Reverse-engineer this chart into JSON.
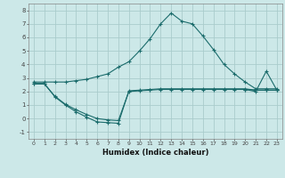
{
  "background_color": "#cce8e8",
  "grid_color": "#aacccc",
  "line_color": "#1a6b6b",
  "xlabel": "Humidex (Indice chaleur)",
  "ylim": [
    -1.5,
    8.5
  ],
  "xlim": [
    -0.5,
    23.5
  ],
  "yticks": [
    -1,
    0,
    1,
    2,
    3,
    4,
    5,
    6,
    7,
    8
  ],
  "xticks": [
    0,
    1,
    2,
    3,
    4,
    5,
    6,
    7,
    8,
    9,
    10,
    11,
    12,
    13,
    14,
    15,
    16,
    17,
    18,
    19,
    20,
    21,
    22,
    23
  ],
  "series1_x": [
    0,
    1,
    2,
    3,
    4,
    5,
    6,
    7,
    8,
    9,
    10,
    11,
    12,
    13,
    14,
    15,
    16,
    17,
    18,
    19,
    20,
    21,
    22,
    23
  ],
  "series1_y": [
    2.7,
    2.7,
    2.7,
    2.7,
    2.8,
    2.9,
    3.1,
    3.3,
    3.8,
    4.2,
    5.0,
    5.9,
    7.0,
    7.8,
    7.2,
    7.0,
    6.1,
    5.1,
    4.0,
    3.3,
    2.7,
    2.2,
    2.2,
    2.2
  ],
  "series2_x": [
    0,
    1,
    2,
    3,
    4,
    5,
    6,
    7,
    8,
    9,
    10,
    11,
    12,
    13,
    14,
    15,
    16,
    17,
    18,
    19,
    20,
    21,
    22,
    23
  ],
  "series2_y": [
    2.6,
    2.6,
    1.6,
    1.0,
    0.5,
    0.1,
    -0.25,
    -0.3,
    -0.35,
    2.05,
    2.1,
    2.15,
    2.2,
    2.2,
    2.2,
    2.2,
    2.2,
    2.2,
    2.2,
    2.2,
    2.2,
    2.1,
    2.1,
    2.1
  ],
  "series3_x": [
    0,
    1,
    2,
    3,
    4,
    5,
    6,
    7,
    8,
    9,
    10,
    11,
    12,
    13,
    14,
    15,
    16,
    17,
    18,
    19,
    20,
    21,
    22,
    23
  ],
  "series3_y": [
    2.55,
    2.55,
    1.65,
    1.05,
    0.65,
    0.3,
    0.0,
    -0.1,
    -0.15,
    2.0,
    2.05,
    2.1,
    2.15,
    2.15,
    2.15,
    2.15,
    2.15,
    2.15,
    2.15,
    2.15,
    2.15,
    2.1,
    2.1,
    2.1
  ],
  "series4_x": [
    20,
    21,
    22,
    23
  ],
  "series4_y": [
    2.15,
    2.0,
    3.5,
    2.1
  ]
}
